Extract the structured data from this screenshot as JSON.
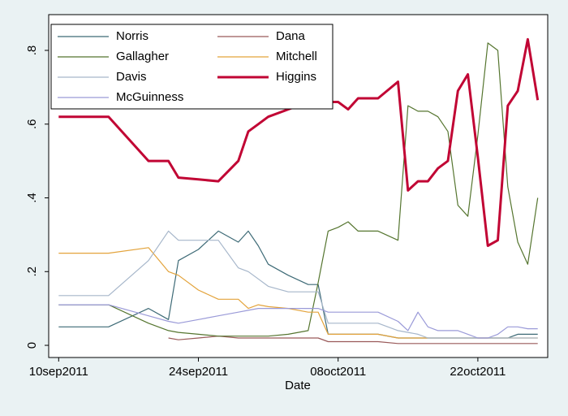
{
  "chart_data": {
    "type": "line",
    "x_label": "Date",
    "x": [
      "2011-09-10",
      "2011-09-15",
      "2011-09-19",
      "2011-09-21",
      "2011-09-22",
      "2011-09-24",
      "2011-09-26",
      "2011-09-28",
      "2011-09-29",
      "2011-09-30",
      "2011-10-01",
      "2011-10-03",
      "2011-10-05",
      "2011-10-06",
      "2011-10-07",
      "2011-10-08",
      "2011-10-09",
      "2011-10-10",
      "2011-10-12",
      "2011-10-14",
      "2011-10-15",
      "2011-10-16",
      "2011-10-17",
      "2011-10-18",
      "2011-10-19",
      "2011-10-20",
      "2011-10-21",
      "2011-10-22",
      "2011-10-23",
      "2011-10-24",
      "2011-10-25",
      "2011-10-26",
      "2011-10-27",
      "2011-10-28"
    ],
    "series": [
      {
        "name": "Norris",
        "color": "#3d6a76",
        "values": [
          0.05,
          0.05,
          0.1,
          0.07,
          0.23,
          0.26,
          0.31,
          0.28,
          0.31,
          0.27,
          0.22,
          0.19,
          0.165,
          0.165,
          0.03,
          0.03,
          0.03,
          0.03,
          0.03,
          0.02,
          0.02,
          0.02,
          0.02,
          0.02,
          0.02,
          0.02,
          0.02,
          0.02,
          0.02,
          0.02,
          0.02,
          0.03,
          0.03,
          0.03
        ]
      },
      {
        "name": "Dana",
        "color": "#9a5a5a",
        "values": [
          null,
          null,
          null,
          0.02,
          0.015,
          0.02,
          0.025,
          0.02,
          0.02,
          0.02,
          0.02,
          0.02,
          0.02,
          0.02,
          0.01,
          0.01,
          0.01,
          0.01,
          0.01,
          0.005,
          0.005,
          0.005,
          0.005,
          0.005,
          0.005,
          0.005,
          0.005,
          0.005,
          0.005,
          0.005,
          0.005,
          0.005,
          0.005,
          0.005
        ]
      },
      {
        "name": "Gallagher",
        "color": "#55752f",
        "values": [
          0.11,
          0.11,
          0.06,
          0.04,
          0.035,
          0.03,
          0.025,
          0.025,
          0.025,
          0.025,
          0.025,
          0.03,
          0.04,
          0.17,
          0.31,
          0.32,
          0.335,
          0.31,
          0.31,
          0.285,
          0.65,
          0.635,
          0.635,
          0.62,
          0.58,
          0.38,
          0.35,
          0.57,
          0.82,
          0.8,
          0.43,
          0.28,
          0.22,
          0.4
        ]
      },
      {
        "name": "Mitchell",
        "color": "#e3a33b",
        "values": [
          0.25,
          0.25,
          0.265,
          0.2,
          0.19,
          0.15,
          0.125,
          0.125,
          0.1,
          0.11,
          0.105,
          0.1,
          0.09,
          0.09,
          0.03,
          0.03,
          0.03,
          0.03,
          0.03,
          0.02,
          0.02,
          0.02,
          0.02,
          0.02,
          0.02,
          0.02,
          0.02,
          0.02,
          0.02,
          0.02,
          0.02,
          0.02,
          0.02,
          0.02
        ]
      },
      {
        "name": "Davis",
        "color": "#a6b6ca",
        "values": [
          0.135,
          0.135,
          0.23,
          0.31,
          0.285,
          0.285,
          0.285,
          0.21,
          0.2,
          0.18,
          0.16,
          0.145,
          0.145,
          0.145,
          0.06,
          0.06,
          0.06,
          0.06,
          0.06,
          0.04,
          0.035,
          0.03,
          0.02,
          0.02,
          0.02,
          0.02,
          0.02,
          0.02,
          0.02,
          0.02,
          0.02,
          0.02,
          0.02,
          0.02
        ]
      },
      {
        "name": "Higgins",
        "color": "#c10534",
        "linewidth": 3,
        "values": [
          0.62,
          0.62,
          0.5,
          0.5,
          0.455,
          0.45,
          0.445,
          0.5,
          0.58,
          0.6,
          0.62,
          0.64,
          0.66,
          0.66,
          0.66,
          0.66,
          0.64,
          0.67,
          0.67,
          0.715,
          0.42,
          0.445,
          0.445,
          0.48,
          0.5,
          0.69,
          0.735,
          0.51,
          0.27,
          0.285,
          0.65,
          0.69,
          0.83,
          0.665
        ]
      },
      {
        "name": "McGuinness",
        "color": "#9a9ad8",
        "values": [
          0.11,
          0.11,
          0.08,
          0.065,
          0.06,
          0.07,
          0.08,
          0.09,
          0.095,
          0.1,
          0.1,
          0.1,
          0.1,
          0.1,
          0.09,
          0.09,
          0.09,
          0.09,
          0.09,
          0.065,
          0.04,
          0.09,
          0.05,
          0.04,
          0.04,
          0.04,
          0.03,
          0.02,
          0.02,
          0.03,
          0.05,
          0.05,
          0.045,
          0.045
        ]
      }
    ],
    "xlim": [
      "2011-09-09",
      "2011-10-29"
    ],
    "xticks": [
      {
        "value": "2011-09-10",
        "label": "10sep2011"
      },
      {
        "value": "2011-09-24",
        "label": "24sep2011"
      },
      {
        "value": "2011-10-08",
        "label": "08oct2011"
      },
      {
        "value": "2011-10-22",
        "label": "22oct2011"
      }
    ],
    "ylim": [
      -0.033,
      0.897
    ],
    "yticks": [
      0,
      {
        "value": 0.2,
        "label": ".2"
      },
      {
        "value": 0.4,
        "label": ".4"
      },
      {
        "value": 0.6,
        "label": ".6"
      },
      {
        "value": 0.8,
        "label": ".8"
      }
    ],
    "legend": "top-left"
  }
}
